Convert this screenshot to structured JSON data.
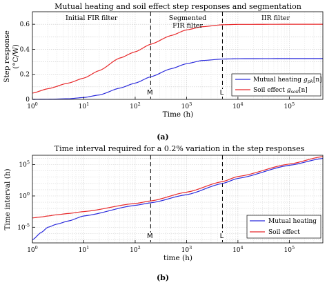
{
  "chart_data": [
    {
      "type": "line",
      "title": "Mutual heating and soil effect step responses and segmentation",
      "xlabel": "Time (h)",
      "ylabel_line1": "Step response",
      "ylabel_line2": "(°C/W)",
      "xscale": "log",
      "xlim": [
        1,
        450000
      ],
      "ylim": [
        0,
        0.7
      ],
      "x_ticks": [
        1,
        10,
        100,
        1000,
        10000,
        100000
      ],
      "x_tick_labels": [
        "10^0",
        "10^1",
        "10^2",
        "10^3",
        "10^4",
        "10^5"
      ],
      "y_ticks": [
        0,
        0.2,
        0.4,
        0.6
      ],
      "y_tick_labels": [
        "0",
        "0.2",
        "0.4",
        "0.6"
      ],
      "grid": true,
      "legend_position": "bottom-right",
      "vlines": [
        {
          "x": 200,
          "label": "M"
        },
        {
          "x": 5000,
          "label": "L"
        }
      ],
      "region_labels": [
        "Initial FIR filter",
        "Segmented",
        "FIR filter",
        "IIR filter"
      ],
      "x": [
        1,
        2,
        5,
        10,
        20,
        50,
        100,
        200,
        500,
        1000,
        2000,
        5000,
        10000,
        100000,
        450000
      ],
      "series": [
        {
          "name": "Mutual heating",
          "name_symbol": "g",
          "name_sub": "pk",
          "name_arg": "[n]",
          "color": "#2b2bdc",
          "values": [
            0.0,
            0.001,
            0.005,
            0.015,
            0.035,
            0.09,
            0.13,
            0.18,
            0.245,
            0.285,
            0.31,
            0.322,
            0.325,
            0.326,
            0.326
          ]
        },
        {
          "name": "Soil effect",
          "name_symbol": "g",
          "name_sub": "soil",
          "name_arg": "[n]",
          "color": "#e8282a",
          "values": [
            0.05,
            0.085,
            0.13,
            0.17,
            0.23,
            0.33,
            0.38,
            0.44,
            0.51,
            0.555,
            0.58,
            0.596,
            0.599,
            0.6,
            0.6
          ]
        }
      ]
    },
    {
      "type": "line",
      "title": "Time interval required for a 0.2% variation in the step responses",
      "xlabel": "time (h)",
      "ylabel": "Time interval (h)",
      "xscale": "log",
      "yscale": "log",
      "xlim": [
        1,
        450000
      ],
      "ylim_exponent": [
        -7.5,
        6.5
      ],
      "x_ticks": [
        1,
        10,
        100,
        1000,
        10000,
        100000
      ],
      "x_tick_labels": [
        "10^0",
        "10^1",
        "10^2",
        "10^3",
        "10^4",
        "10^5"
      ],
      "y_tick_exponents": [
        -5,
        0,
        5
      ],
      "grid": true,
      "legend_position": "bottom-right",
      "vlines": [
        {
          "x": 200,
          "label": "M"
        },
        {
          "x": 5000,
          "label": "L"
        }
      ],
      "x": [
        1,
        1.5,
        2,
        3,
        5,
        10,
        100,
        200,
        1000,
        5000,
        10000,
        100000,
        450000
      ],
      "series": [
        {
          "name": "Mutual heating",
          "color": "#2b2bdc",
          "values_log10": [
            -7.0,
            -5.8,
            -5.0,
            -4.5,
            -4.0,
            -3.2,
            -1.5,
            -1.1,
            0.2,
            2.0,
            2.8,
            4.9,
            6.0
          ]
        },
        {
          "name": "Soil effect",
          "color": "#e8282a",
          "values_log10": [
            -3.5,
            -3.35,
            -3.2,
            -3.0,
            -2.8,
            -2.5,
            -1.2,
            -0.8,
            0.6,
            2.3,
            3.1,
            5.1,
            6.3
          ]
        }
      ]
    }
  ],
  "captions": [
    "(a)",
    "(b)"
  ]
}
